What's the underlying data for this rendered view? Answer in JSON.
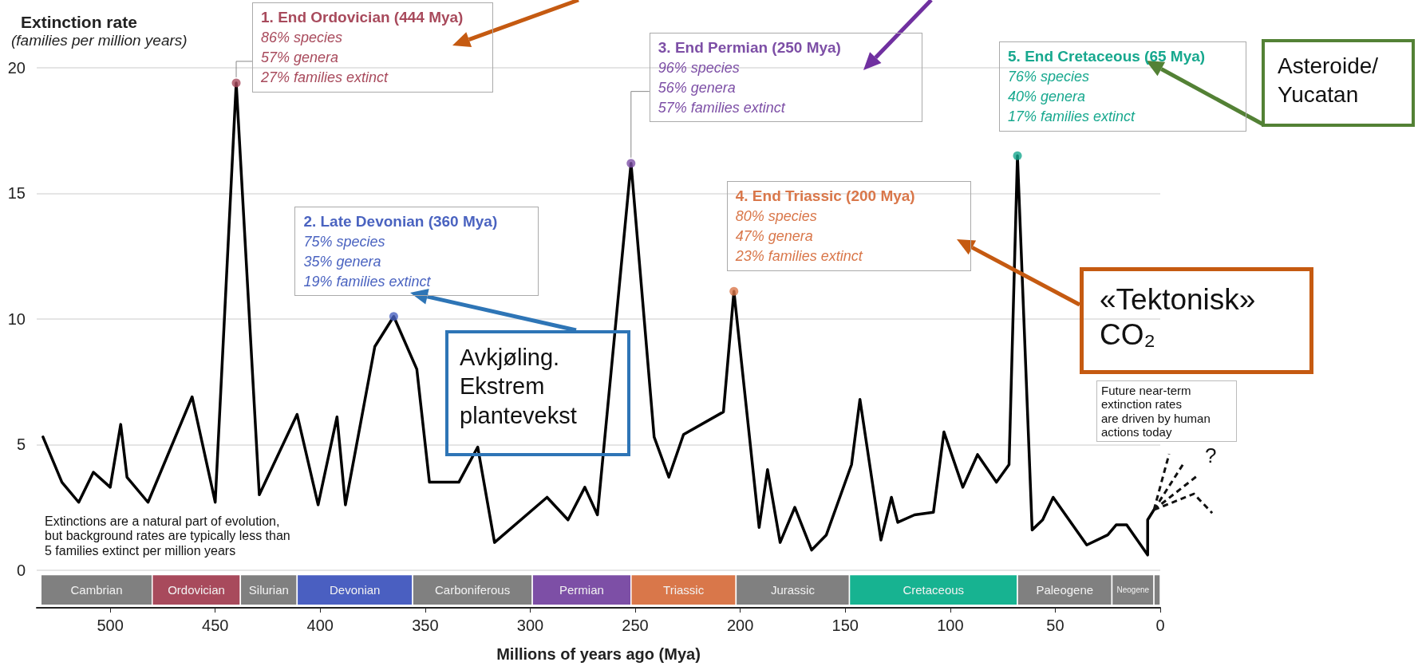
{
  "chart_data": {
    "type": "line",
    "xlabel": "Millions of years ago (Mya)",
    "ylabel": "Extinction rate\n(families per million years)",
    "xlim": [
      535,
      0
    ],
    "xticks": [
      500,
      450,
      400,
      350,
      300,
      250,
      200,
      150,
      100,
      50,
      0
    ],
    "ylim": [
      -1.5,
      20
    ],
    "yticks": [
      0,
      5,
      10,
      15,
      20
    ],
    "grid": "y",
    "series": [
      {
        "color": "#000000",
        "marker": "none",
        "line_style": "solid",
        "x": [
          532,
          523,
          515,
          508,
          500,
          495,
          492,
          482,
          461,
          450,
          440,
          429,
          411,
          401,
          392,
          388,
          374,
          365,
          354,
          348,
          334,
          325,
          317,
          292,
          282,
          274,
          268,
          252,
          241,
          234,
          227,
          208,
          203,
          191,
          187,
          181,
          174,
          166,
          159,
          147,
          143,
          133,
          128,
          125,
          117,
          108,
          103,
          94,
          87,
          78,
          72,
          68,
          61,
          56,
          51,
          35,
          25,
          21,
          16,
          6,
          6,
          3
        ],
        "values": [
          5.3,
          3.5,
          2.7,
          3.9,
          3.3,
          5.8,
          3.7,
          2.7,
          6.9,
          2.7,
          19.4,
          3.0,
          6.2,
          2.6,
          6.1,
          2.6,
          8.9,
          10.1,
          8.0,
          3.5,
          3.5,
          4.9,
          1.1,
          2.9,
          2.0,
          3.3,
          2.2,
          16.2,
          5.3,
          3.7,
          5.4,
          6.3,
          11.1,
          1.7,
          4.0,
          1.1,
          2.5,
          0.8,
          1.4,
          4.2,
          6.8,
          1.2,
          2.9,
          1.9,
          2.2,
          2.3,
          5.5,
          3.3,
          4.6,
          3.5,
          4.2,
          16.5,
          1.6,
          2.0,
          2.9,
          1.0,
          1.4,
          1.8,
          1.8,
          0.6,
          2.0,
          2.4
        ]
      },
      {
        "type": "scatter",
        "marker": "circle",
        "x": [
          440,
          365,
          252,
          203,
          68
        ],
        "values": [
          19.4,
          10.1,
          16.2,
          11.1,
          16.5
        ],
        "colors": [
          "#a84a5c",
          "#4a63c0",
          "#7d4fa6",
          "#d9774a",
          "#17a88e"
        ]
      }
    ],
    "bands": [
      {
        "axis": "x",
        "from": 533,
        "to": 480,
        "label": "Cambrian",
        "color": "#808080"
      },
      {
        "axis": "x",
        "from": 480,
        "to": 438,
        "label": "Ordovician",
        "color": "#a84a5c"
      },
      {
        "axis": "x",
        "from": 438,
        "to": 411,
        "label": "Silurian",
        "color": "#808080"
      },
      {
        "axis": "x",
        "from": 411,
        "to": 356,
        "label": "Devonian",
        "color": "#4a5fc1"
      },
      {
        "axis": "x",
        "from": 356,
        "to": 299,
        "label": "Carboniferous",
        "color": "#808080"
      },
      {
        "axis": "x",
        "from": 299,
        "to": 252,
        "label": "Permian",
        "color": "#7d4fa6"
      },
      {
        "axis": "x",
        "from": 252,
        "to": 202,
        "label": "Triassic",
        "color": "#d9774a"
      },
      {
        "axis": "x",
        "from": 202,
        "to": 148,
        "label": "Jurassic",
        "color": "#808080"
      },
      {
        "axis": "x",
        "from": 148,
        "to": 68,
        "label": "Cretaceous",
        "color": "#17b391"
      },
      {
        "axis": "x",
        "from": 68,
        "to": 23,
        "label": "Paleogene",
        "color": "#808080"
      },
      {
        "axis": "x",
        "from": 23,
        "to": 3,
        "label": "Neogene",
        "color": "#808080"
      },
      {
        "axis": "x",
        "from": 3,
        "to": 0,
        "label": null,
        "color": "#808080"
      }
    ],
    "annotations": [
      {
        "text": "1. End Ordovician (444 Mya)\n86% species\n57% genera\n27% families extinct",
        "x": 440,
        "y": 19.4
      },
      {
        "text": "2. Late Devonian (360 Mya)\n75% species\n35% genera\n19% families extinct",
        "x": 365,
        "y": 10.1
      },
      {
        "text": "3. End Permian (250 Mya)\n96% species\n56% genera\n57% families extinct",
        "x": 252,
        "y": 16.2
      },
      {
        "text": "4. End Triassic (200 Mya)\n80% species\n47% genera\n23% families extinct",
        "x": 203,
        "y": 11.1
      },
      {
        "text": "5. End Cretaceous (65 Mya)\n76% species\n40% genera\n17% families extinct",
        "x": 68,
        "y": 16.5
      },
      "Extinctions are a natural part of evolution,\nbut background rates are typically less than\n5 families extinct per million years",
      "Future near-term\nextinction rates\nare driven by human\nactions today",
      "Avkjøling.\nEkstrem\nplantevekst",
      "«Tektonisk»\nCO₂",
      "Asteroide/\nYucatan",
      {
        "text": "?",
        "x": 3,
        "y": 2.4
      }
    ]
  }
}
